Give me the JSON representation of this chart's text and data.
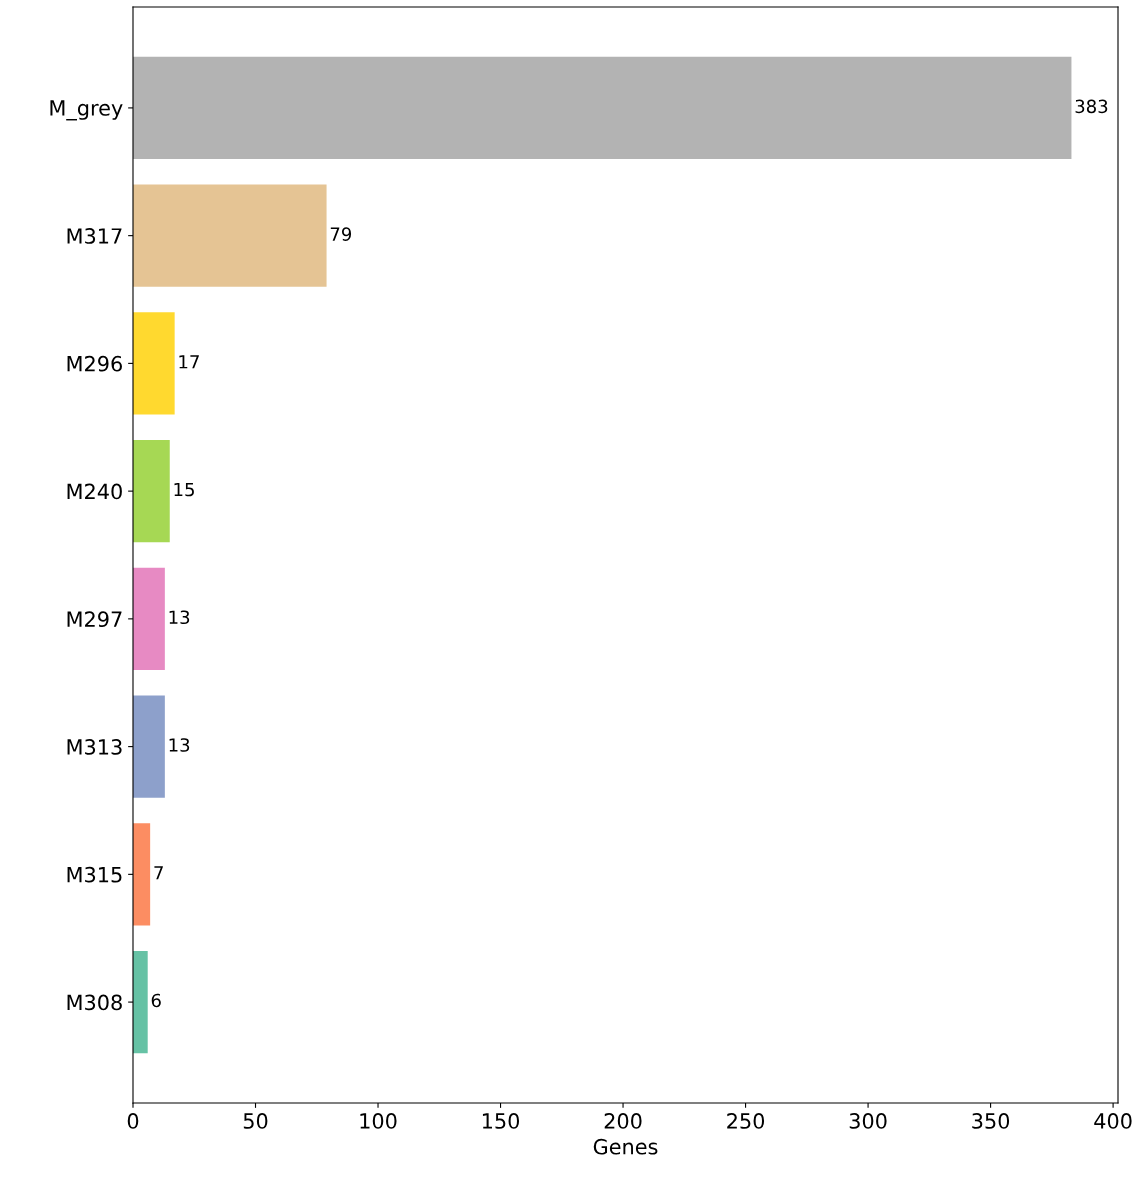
{
  "chart_data": {
    "type": "bar",
    "orientation": "horizontal",
    "xlabel": "Genes",
    "categories": [
      "M_grey",
      "M317",
      "M296",
      "M240",
      "M297",
      "M313",
      "M315",
      "M308"
    ],
    "values": [
      383,
      79,
      17,
      15,
      13,
      13,
      7,
      6
    ],
    "colors": [
      "#b3b3b3",
      "#e5c494",
      "#ffd92f",
      "#a6d854",
      "#e78ac3",
      "#8da0cb",
      "#fc8d62",
      "#66c2a5"
    ],
    "xlim": [
      0,
      402
    ],
    "xticks": [
      0,
      50,
      100,
      150,
      200,
      250,
      300,
      350,
      400
    ],
    "data_labels": true,
    "grid": false,
    "legend": false
  }
}
